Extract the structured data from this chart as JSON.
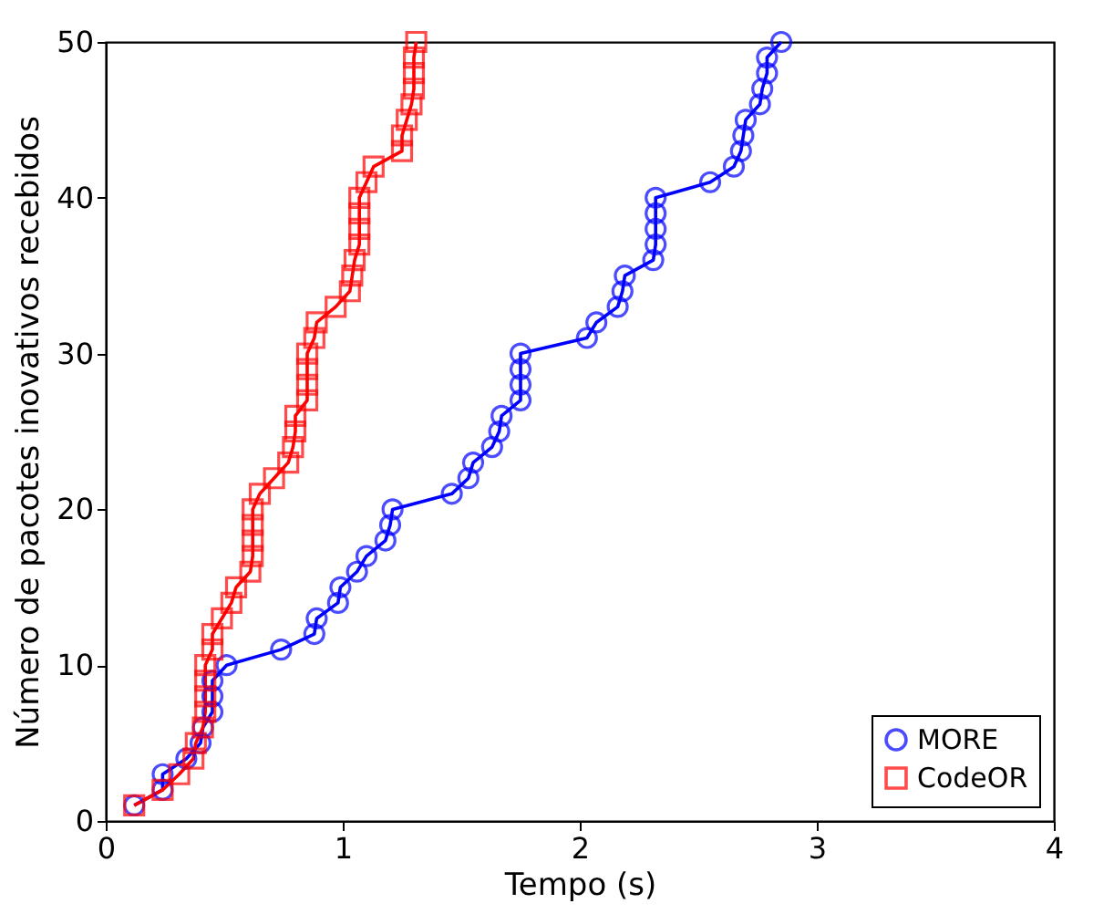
{
  "chart_data": {
    "type": "line",
    "xlabel": "Tempo (s)",
    "ylabel": "Número de pacotes inovativos recebidos",
    "xlim": [
      0,
      4
    ],
    "xticks": [
      0,
      1,
      2,
      3,
      4
    ],
    "ylim": [
      0,
      50
    ],
    "yticks": [
      0,
      10,
      20,
      30,
      40,
      50
    ],
    "grid": false,
    "legend": "bottom right",
    "line_style": "solid",
    "series": [
      {
        "name": "MORE",
        "color": "#0000ff",
        "marker": "circle",
        "x": [
          0.12,
          0.24,
          0.24,
          0.34,
          0.4,
          0.41,
          0.45,
          0.45,
          0.45,
          0.51,
          0.74,
          0.88,
          0.89,
          0.98,
          0.99,
          1.06,
          1.1,
          1.18,
          1.2,
          1.21,
          1.46,
          1.53,
          1.55,
          1.63,
          1.66,
          1.67,
          1.75,
          1.75,
          1.75,
          1.75,
          2.03,
          2.07,
          2.16,
          2.18,
          2.19,
          2.31,
          2.32,
          2.32,
          2.32,
          2.32,
          2.55,
          2.65,
          2.68,
          2.69,
          2.7,
          2.76,
          2.77,
          2.79,
          2.79,
          2.85
        ],
        "values": [
          1,
          2,
          3,
          4,
          5,
          6,
          7,
          8,
          9,
          10,
          11,
          12,
          13,
          14,
          15,
          16,
          17,
          18,
          19,
          20,
          21,
          22,
          23,
          24,
          25,
          26,
          27,
          28,
          29,
          30,
          31,
          32,
          33,
          34,
          35,
          36,
          37,
          38,
          39,
          40,
          41,
          42,
          43,
          44,
          45,
          46,
          47,
          48,
          49,
          50
        ]
      },
      {
        "name": "CodeOR",
        "color": "#ff0000",
        "marker": "square",
        "x": [
          0.12,
          0.24,
          0.31,
          0.37,
          0.38,
          0.41,
          0.42,
          0.42,
          0.42,
          0.42,
          0.45,
          0.45,
          0.49,
          0.53,
          0.55,
          0.61,
          0.62,
          0.62,
          0.62,
          0.62,
          0.65,
          0.71,
          0.77,
          0.79,
          0.8,
          0.8,
          0.85,
          0.85,
          0.85,
          0.85,
          0.88,
          0.89,
          0.97,
          1.03,
          1.04,
          1.05,
          1.07,
          1.07,
          1.07,
          1.07,
          1.1,
          1.13,
          1.25,
          1.25,
          1.27,
          1.29,
          1.3,
          1.3,
          1.3,
          1.31
        ],
        "values": [
          1,
          2,
          3,
          4,
          5,
          6,
          7,
          8,
          9,
          10,
          11,
          12,
          13,
          14,
          15,
          16,
          17,
          18,
          19,
          20,
          21,
          22,
          23,
          24,
          25,
          26,
          27,
          28,
          29,
          30,
          31,
          32,
          33,
          34,
          35,
          36,
          37,
          38,
          39,
          40,
          41,
          42,
          43,
          44,
          45,
          46,
          47,
          48,
          49,
          50
        ]
      }
    ]
  }
}
